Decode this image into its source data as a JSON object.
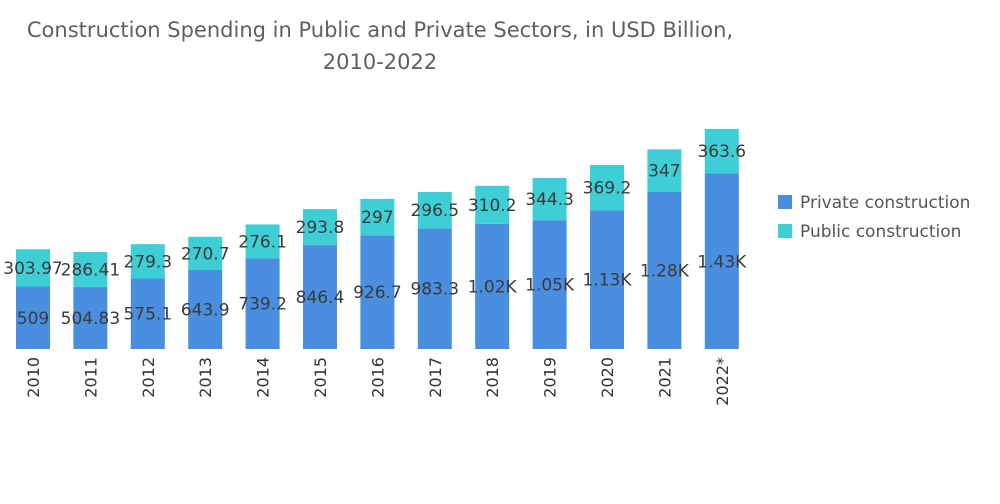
{
  "chart_data": {
    "type": "bar",
    "stacked": true,
    "title": "Construction Spending in Public and Private Sectors, in USD Billion,",
    "subtitle": "2010-2022",
    "xlabel": "",
    "ylabel": "",
    "categories": [
      "2010",
      "2011",
      "2012",
      "2013",
      "2014",
      "2015",
      "2016",
      "2017",
      "2018",
      "2019",
      "2020",
      "2021",
      "2022*"
    ],
    "series": [
      {
        "name": "Private construction",
        "color": "#4a8ee0",
        "values": [
          509,
          504.83,
          575.1,
          643.9,
          739.2,
          846.4,
          926.7,
          983.3,
          1020,
          1050,
          1130,
          1280,
          1430
        ],
        "labels": [
          "509",
          "504.83",
          "575.1",
          "643.9",
          "739.2",
          "846.4",
          "926.7",
          "983.3",
          "1.02K",
          "1.05K",
          "1.13K",
          "1.28K",
          "1.43K"
        ]
      },
      {
        "name": "Public construction",
        "color": "#3ecfd6",
        "values": [
          303.97,
          286.41,
          279.3,
          270.7,
          276.1,
          293.8,
          297,
          296.5,
          310.2,
          344.3,
          369.2,
          347,
          363.6
        ],
        "labels": [
          "303.97",
          "286.41",
          "279.3",
          "270.7",
          "276.1",
          "293.8",
          "297",
          "296.5",
          "310.2",
          "344.3",
          "369.2",
          "347",
          "363.6"
        ]
      }
    ],
    "ylim": [
      0,
      1850
    ],
    "grid": false,
    "legend_position": "right"
  }
}
